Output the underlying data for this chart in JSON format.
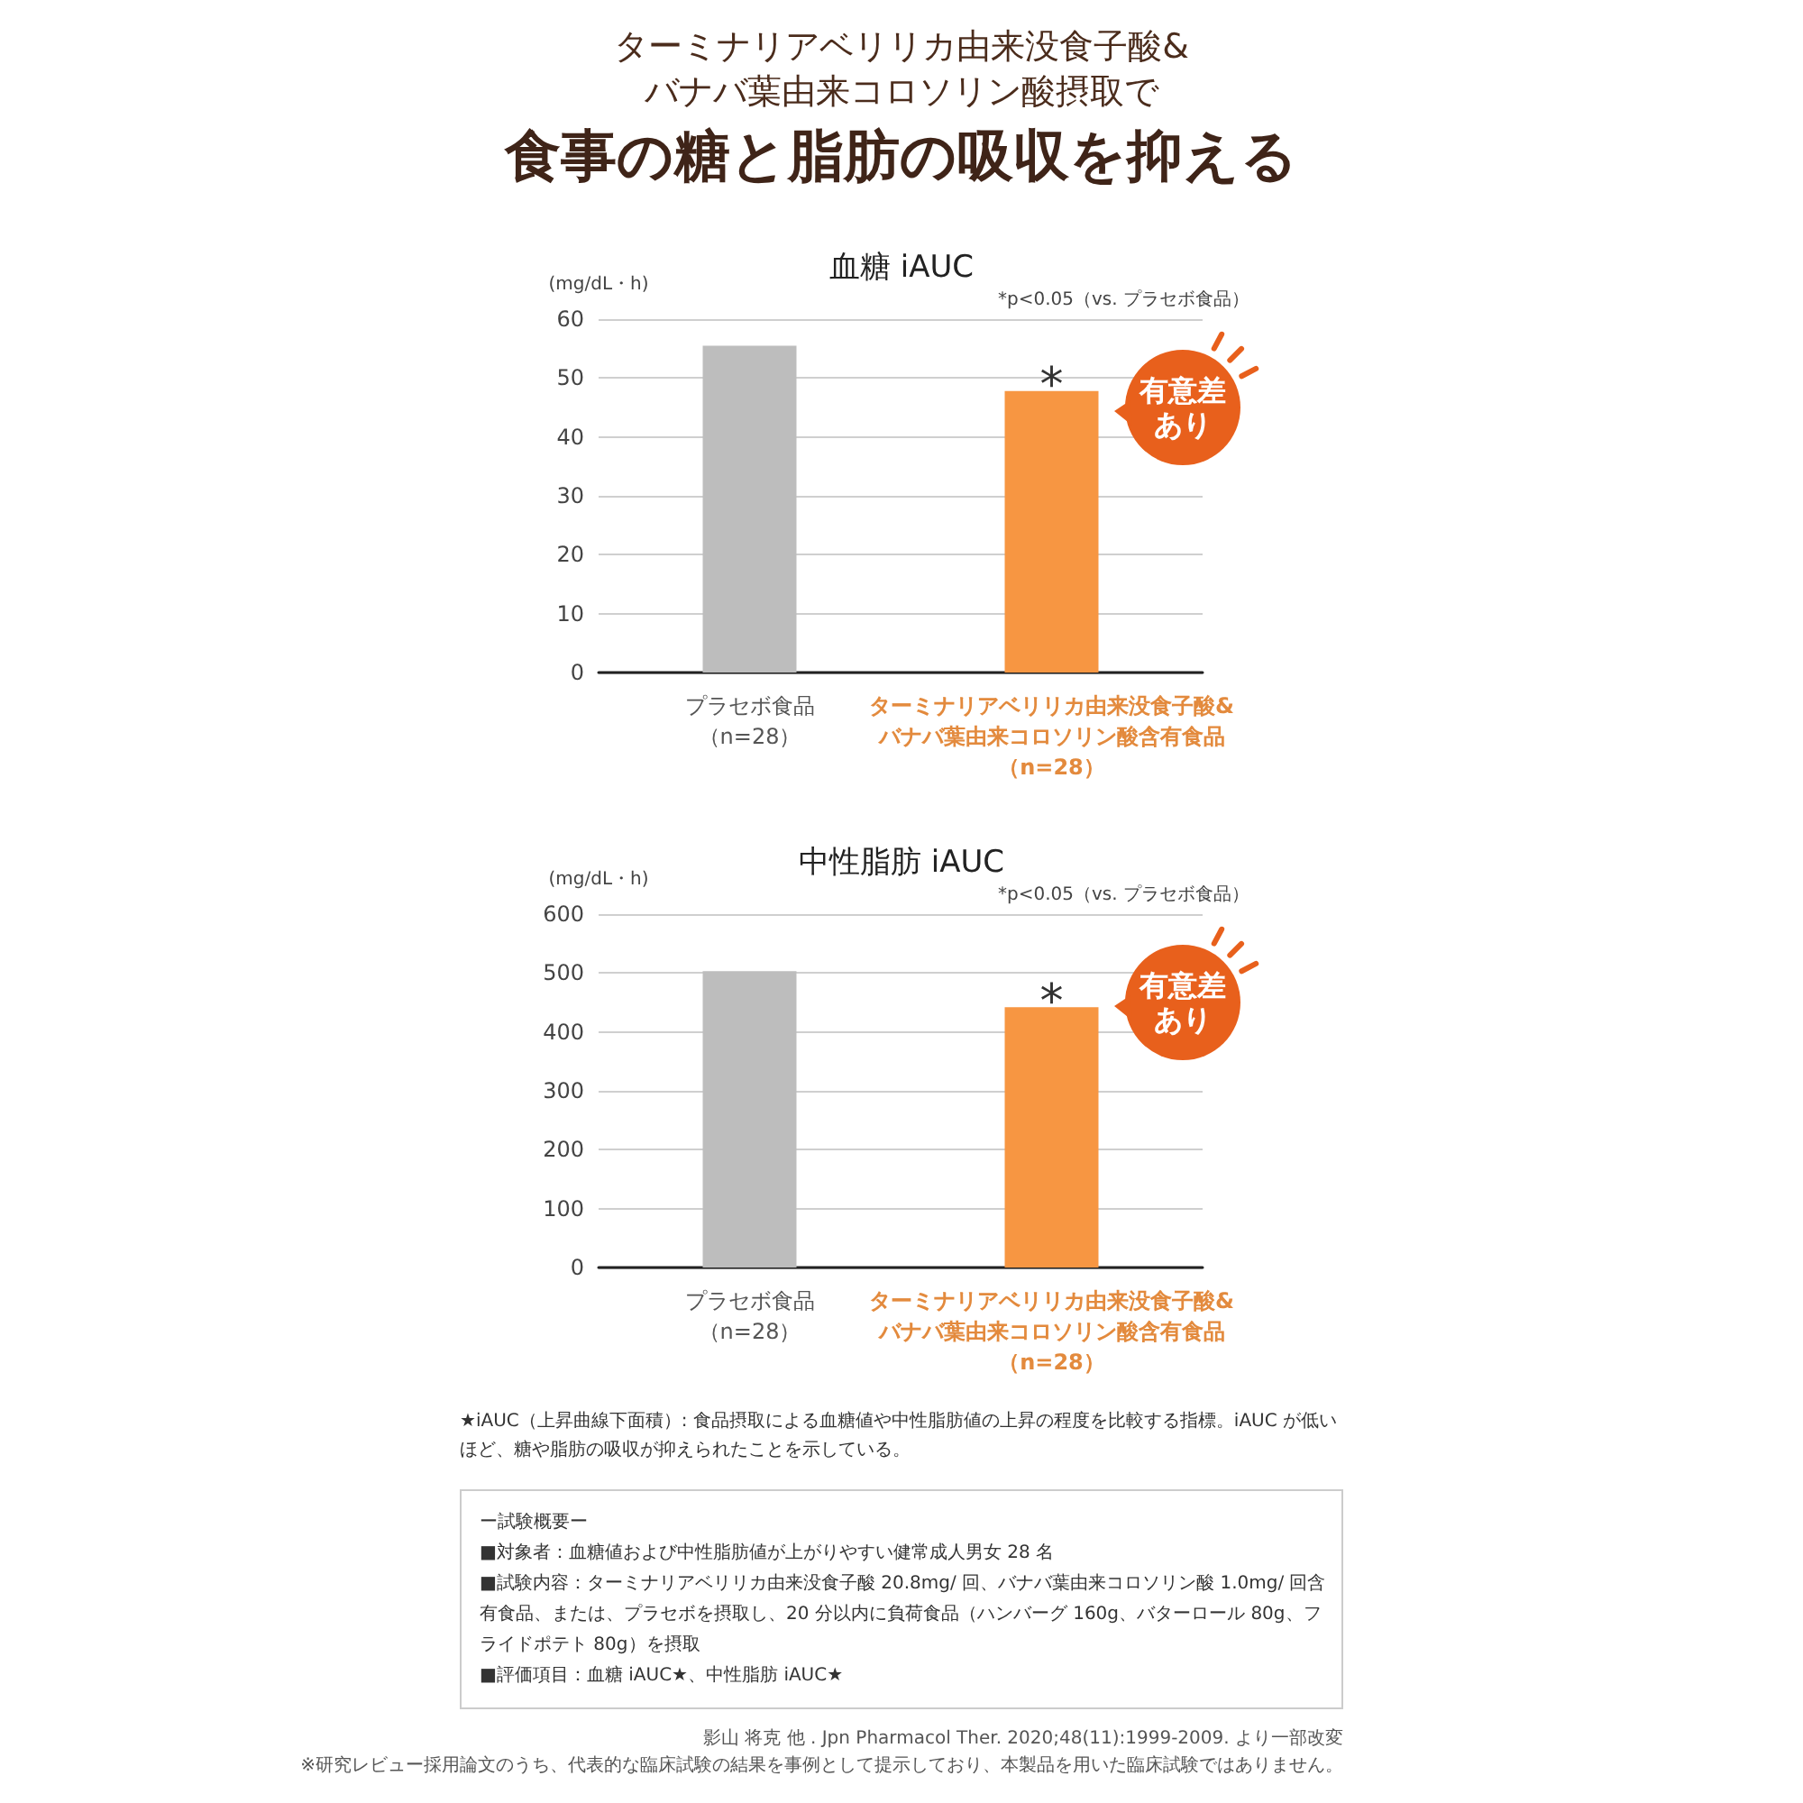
{
  "chart_data": [
    {
      "type": "bar",
      "title": "血糖 iAUC",
      "ylabel": "(mg/dL・h)",
      "categories": [
        "プラセボ食品（n=28）",
        "ターミナリアベリリカ由来没食子酸&バナバ葉由来コロソリン酸含有食品（n=28）"
      ],
      "values": [
        55.5,
        47.8
      ],
      "colors": [
        "#bdbdbd",
        "#f79642"
      ],
      "ylim": [
        0,
        60
      ],
      "yticks": [
        0,
        10,
        20,
        30,
        40,
        50,
        60
      ],
      "grid": "y",
      "annotations": [
        "ターミナリアベリリカ由来没食子酸&バナバ葉由来コロソリン酸摂取で",
        "食事の糖と脂肪の吸収を抑える",
        "*p<0.05（vs. プラセボ食品）",
        {
          "text": "*",
          "x": "ターミナリアベリリカ由来没食子酸&バナバ葉由来コロソリン酸含有食品（n=28）",
          "y": 47.8
        },
        "有意差あり"
      ]
    },
    {
      "type": "bar",
      "title": "中性脂肪 iAUC",
      "ylabel": "(mg/dL・h)",
      "categories": [
        "プラセボ食品（n=28）",
        "ターミナリアベリリカ由来没食子酸&バナバ葉由来コロソリン酸含有食品（n=28）"
      ],
      "values": [
        503,
        442
      ],
      "colors": [
        "#bdbdbd",
        "#f79642"
      ],
      "ylim": [
        0,
        600
      ],
      "yticks": [
        0,
        100,
        200,
        300,
        400,
        500,
        600
      ],
      "grid": "y",
      "annotations": [
        "*p<0.05（vs. プラセボ食品）",
        {
          "text": "*",
          "x": "ターミナリアベリリカ由来没食子酸&バナバ葉由来コロソリン酸含有食品（n=28）",
          "y": 442
        },
        "有意差あり",
        "★iAUC（上昇曲線下面積）: 食品摂取による血糖値や中性脂肪値の上昇の程度を比較する指標。iAUC が低いほど、糖や脂肪の吸収が抑えられたことを示している。",
        "ー試験概要ー",
        "■対象者：血糖値および中性脂肪値が上がりやすい健常成人男女 28 名",
        "■試験内容：ターミナリアベリリカ由来没食子酸 20.8mg/ 回、バナバ葉由来コロソリン酸 1.0mg/ 回含有食品、または、プラセボを摂取し、20 分以内に負荷食品（ハンバーグ 160g、バターロール 80g、フライドポテト 80g）を摂取",
        "■評価項目：血糖 iAUC★、中性脂肪 iAUC★",
        "影山 将克 他 . Jpn Pharmacol Ther. 2020;48(11):1999-2009. より一部改変",
        "※研究レビュー採用論文のうち、代表的な臨床試験の結果を事例として提示しており、本製品を用いた臨床試験ではありません。"
      ]
    }
  ]
}
